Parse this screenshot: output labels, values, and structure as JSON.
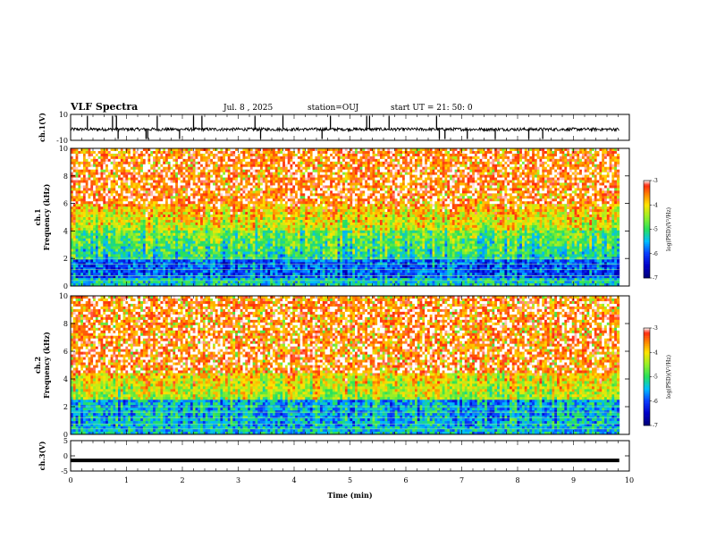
{
  "header": {
    "title": "VLF Spectra",
    "date": "Jul. 8 , 2025",
    "station": "station=OUJ",
    "start_ut": "start UT = 21: 50: 0"
  },
  "colors": {
    "red": "#ff2a10",
    "orange": "#ff8c00",
    "yellow": "#ffe400",
    "green": "#27e05a",
    "cyan": "#00c8ff",
    "blue": "#0a3cff",
    "navy": "#00008b",
    "trace": "#000000"
  },
  "chart_data": [
    {
      "type": "line",
      "name": "ch1-waveform",
      "ylabel": "ch.1(V)",
      "ylim": [
        -10,
        10
      ],
      "y_ticks": [
        "10",
        "-10"
      ],
      "baseline": -1.5,
      "noise_amplitude": 1.2,
      "spikes_up_min": [
        0.3,
        0.75,
        0.82,
        1.55,
        2.2,
        2.35,
        3.3,
        3.8,
        4.65,
        5.3,
        5.35,
        5.7,
        6.55
      ],
      "spikes_down_min": [
        0.85,
        1.35,
        1.38,
        1.95,
        3.4,
        4.5,
        6.6,
        6.7,
        7.1,
        7.6,
        8.2,
        8.45
      ]
    },
    {
      "type": "heatmap",
      "name": "ch1-spectrogram",
      "ylabel": "ch.1 Frequency (kHz)",
      "ylim": [
        0,
        10
      ],
      "y_ticks": [
        "0",
        "2",
        "4",
        "6",
        "8",
        "10"
      ],
      "z_label": "log(PSD)(V²/Hz)",
      "z_range": [
        -7,
        -3
      ],
      "z_ticks": [
        "-3",
        "-4",
        "-5",
        "-6",
        "-7"
      ],
      "description_bands_khz": [
        {
          "from": 6.0,
          "to": 10.0,
          "level": -3.5
        },
        {
          "from": 4.0,
          "to": 6.0,
          "level": -4.4
        },
        {
          "from": 2.0,
          "to": 4.0,
          "level": -5.5
        },
        {
          "from": 0.0,
          "to": 2.0,
          "level": -6.3
        }
      ]
    },
    {
      "type": "heatmap",
      "name": "ch2-spectrogram",
      "ylabel": "ch.2 Frequency (kHz)",
      "ylim": [
        0,
        10
      ],
      "y_ticks": [
        "0",
        "2",
        "4",
        "6",
        "8",
        "10"
      ],
      "z_label": "log(PSD)(V²/Hz)",
      "z_range": [
        -7,
        -3
      ],
      "z_ticks": [
        "-3",
        "-4",
        "-5",
        "-6",
        "-7"
      ],
      "description_bands_khz": [
        {
          "from": 4.5,
          "to": 10.0,
          "level": -3.5
        },
        {
          "from": 2.5,
          "to": 4.5,
          "level": -4.6
        },
        {
          "from": 0.0,
          "to": 2.5,
          "level": -5.7
        }
      ]
    },
    {
      "type": "line",
      "name": "ch3-waveform",
      "ylabel": "ch.3(V)",
      "ylim": [
        -5,
        5
      ],
      "y_ticks": [
        "5",
        "0",
        "-5"
      ],
      "constant_value": -1.5
    }
  ],
  "x_axis": {
    "label": "Time (min)",
    "range": [
      0,
      10
    ],
    "ticks": [
      "0",
      "1",
      "2",
      "3",
      "4",
      "5",
      "6",
      "7",
      "8",
      "9",
      "10"
    ],
    "data_end": 9.82
  }
}
